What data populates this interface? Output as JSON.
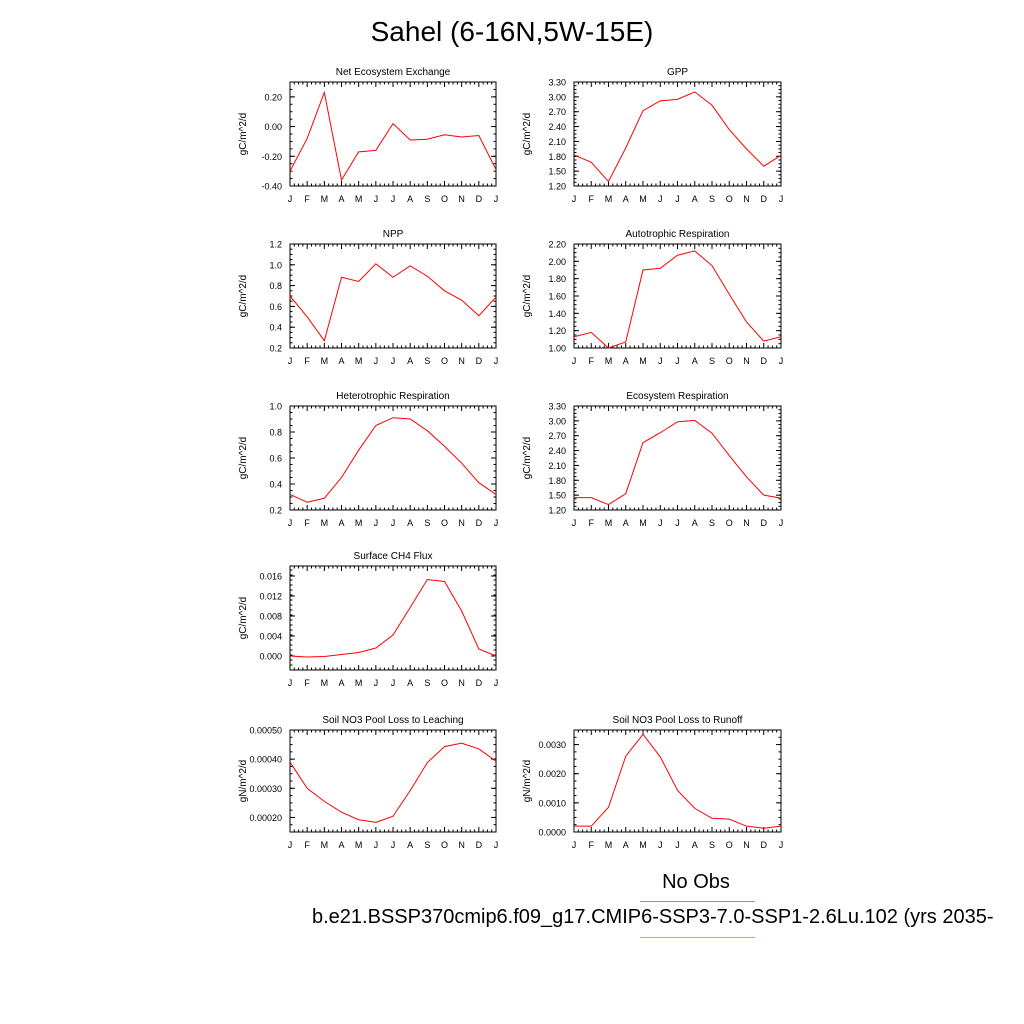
{
  "title": "Sahel (6-16N,5W-15E)",
  "legend": {
    "obs_label": "No Obs",
    "model_label": "b.e21.BSSP370cmip6.f09_g17.CMIP6-SSP3-7.0-SSP1-2.6Lu.102 (yrs 2035-",
    "obs_color": "#8a8aff",
    "model_color": "#ff0000"
  },
  "chart_data": [
    {
      "type": "line",
      "title": "Net Ecosystem Exchange",
      "ylabel": "gC/m^2/d",
      "x": [
        "J",
        "F",
        "M",
        "A",
        "M",
        "J",
        "J",
        "A",
        "S",
        "O",
        "N",
        "D",
        "J"
      ],
      "ylim": [
        -0.4,
        0.3
      ],
      "yticks": [
        "0.20",
        "0.00",
        "-0.20",
        "-0.40"
      ],
      "ytick_values": [
        0.2,
        0.0,
        -0.2,
        -0.4
      ],
      "series": [
        {
          "color": "#ff0000",
          "values": [
            -0.3,
            -0.08,
            0.23,
            -0.36,
            -0.17,
            -0.16,
            0.02,
            -0.09,
            -0.085,
            -0.055,
            -0.07,
            -0.06,
            -0.29
          ]
        }
      ]
    },
    {
      "type": "line",
      "title": "GPP",
      "ylabel": "gC/m^2/d",
      "x": [
        "J",
        "F",
        "M",
        "A",
        "M",
        "J",
        "J",
        "A",
        "S",
        "O",
        "N",
        "D",
        "J"
      ],
      "ylim": [
        1.2,
        3.3
      ],
      "yticks": [
        "3.30",
        "3.00",
        "2.70",
        "2.40",
        "2.10",
        "1.80",
        "1.50",
        "1.20"
      ],
      "ytick_values": [
        3.3,
        3.0,
        2.7,
        2.4,
        2.1,
        1.8,
        1.5,
        1.2
      ],
      "series": [
        {
          "color": "#ff0000",
          "values": [
            1.83,
            1.68,
            1.29,
            1.97,
            2.72,
            2.92,
            2.95,
            3.1,
            2.83,
            2.34,
            1.95,
            1.6,
            1.82
          ]
        }
      ]
    },
    {
      "type": "line",
      "title": "NPP",
      "ylabel": "gC/m^2/d",
      "x": [
        "J",
        "F",
        "M",
        "A",
        "M",
        "J",
        "J",
        "A",
        "S",
        "O",
        "N",
        "D",
        "J"
      ],
      "ylim": [
        0.2,
        1.2
      ],
      "yticks": [
        "1.2",
        "1.0",
        "0.8",
        "0.6",
        "0.4",
        "0.2"
      ],
      "ytick_values": [
        1.2,
        1.0,
        0.8,
        0.6,
        0.4,
        0.2
      ],
      "series": [
        {
          "color": "#ff0000",
          "values": [
            0.7,
            0.5,
            0.27,
            0.88,
            0.84,
            1.01,
            0.88,
            0.99,
            0.89,
            0.75,
            0.66,
            0.51,
            0.69
          ]
        }
      ]
    },
    {
      "type": "line",
      "title": "Autotrophic Respiration",
      "ylabel": "gC/m^2/d",
      "x": [
        "J",
        "F",
        "M",
        "A",
        "M",
        "J",
        "J",
        "A",
        "S",
        "O",
        "N",
        "D",
        "J"
      ],
      "ylim": [
        1.0,
        2.2
      ],
      "yticks": [
        "2.20",
        "2.00",
        "1.80",
        "1.60",
        "1.40",
        "1.20",
        "1.00"
      ],
      "ytick_values": [
        2.2,
        2.0,
        1.8,
        1.6,
        1.4,
        1.2,
        1.0
      ],
      "series": [
        {
          "color": "#ff0000",
          "values": [
            1.13,
            1.18,
            1.0,
            1.07,
            1.9,
            1.92,
            2.07,
            2.12,
            1.95,
            1.62,
            1.3,
            1.08,
            1.13
          ]
        }
      ]
    },
    {
      "type": "line",
      "title": "Heterotrophic Respiration",
      "ylabel": "gC/m^2/d",
      "x": [
        "J",
        "F",
        "M",
        "A",
        "M",
        "J",
        "J",
        "A",
        "S",
        "O",
        "N",
        "D",
        "J"
      ],
      "ylim": [
        0.2,
        1.0
      ],
      "yticks": [
        "1.0",
        "0.8",
        "0.6",
        "0.4",
        "0.2"
      ],
      "ytick_values": [
        1.0,
        0.8,
        0.6,
        0.4,
        0.2
      ],
      "series": [
        {
          "color": "#ff0000",
          "values": [
            0.32,
            0.26,
            0.29,
            0.45,
            0.66,
            0.85,
            0.91,
            0.9,
            0.81,
            0.69,
            0.56,
            0.41,
            0.32
          ]
        }
      ]
    },
    {
      "type": "line",
      "title": "Ecosystem Respiration",
      "ylabel": "gC/m^2/d",
      "x": [
        "J",
        "F",
        "M",
        "A",
        "M",
        "J",
        "J",
        "A",
        "S",
        "O",
        "N",
        "D",
        "J"
      ],
      "ylim": [
        1.2,
        3.3
      ],
      "yticks": [
        "3.30",
        "3.00",
        "2.70",
        "2.40",
        "2.10",
        "1.80",
        "1.50",
        "1.20"
      ],
      "ytick_values": [
        3.3,
        3.0,
        2.7,
        2.4,
        2.1,
        1.8,
        1.5,
        1.2
      ],
      "series": [
        {
          "color": "#ff0000",
          "values": [
            1.45,
            1.45,
            1.31,
            1.53,
            2.56,
            2.76,
            2.98,
            3.01,
            2.75,
            2.3,
            1.87,
            1.5,
            1.44
          ]
        }
      ]
    },
    {
      "type": "line",
      "title": "Surface CH4 Flux",
      "ylabel": "gC/m^2/d",
      "x": [
        "J",
        "F",
        "M",
        "A",
        "M",
        "J",
        "J",
        "A",
        "S",
        "O",
        "N",
        "D",
        "J"
      ],
      "ylim": [
        -0.0028,
        0.018
      ],
      "yticks": [
        "0.016",
        "0.012",
        "0.008",
        "0.004",
        "0.000"
      ],
      "ytick_values": [
        0.016,
        0.012,
        0.008,
        0.004,
        0.0
      ],
      "series": [
        {
          "color": "#ff0000",
          "values": [
            0.0,
            -0.0002,
            -0.0001,
            0.0003,
            0.0007,
            0.0016,
            0.0042,
            0.0097,
            0.0153,
            0.0149,
            0.009,
            0.0014,
            0.0
          ]
        }
      ]
    },
    {
      "type": "line",
      "title": "Soil NO3 Pool Loss to Leaching",
      "ylabel": "gN/m^2/d",
      "x": [
        "J",
        "F",
        "M",
        "A",
        "M",
        "J",
        "J",
        "A",
        "S",
        "O",
        "N",
        "D",
        "J"
      ],
      "ylim": [
        0.00015,
        0.0005
      ],
      "yticks": [
        "0.00050",
        "0.00040",
        "0.00030",
        "0.00020"
      ],
      "ytick_values": [
        0.0005,
        0.0004,
        0.0003,
        0.0002
      ],
      "series": [
        {
          "color": "#ff0000",
          "values": [
            0.00039,
            0.0003,
            0.000255,
            0.000218,
            0.000192,
            0.000183,
            0.000204,
            0.000292,
            0.000388,
            0.000443,
            0.000455,
            0.000435,
            0.000393
          ]
        }
      ]
    },
    {
      "type": "line",
      "title": "Soil NO3 Pool Loss to Runoff",
      "ylabel": "gN/m^2/d",
      "x": [
        "J",
        "F",
        "M",
        "A",
        "M",
        "J",
        "J",
        "A",
        "S",
        "O",
        "N",
        "D",
        "J"
      ],
      "ylim": [
        0.0,
        0.0035
      ],
      "yticks": [
        "0.0030",
        "0.0020",
        "0.0010",
        "0.0000"
      ],
      "ytick_values": [
        0.003,
        0.002,
        0.001,
        0.0
      ],
      "series": [
        {
          "color": "#ff0000",
          "values": [
            0.0002,
            0.0002,
            0.00085,
            0.0026,
            0.00335,
            0.00258,
            0.00143,
            0.00081,
            0.00047,
            0.00044,
            0.0002,
            0.00013,
            0.0002
          ]
        }
      ]
    }
  ]
}
